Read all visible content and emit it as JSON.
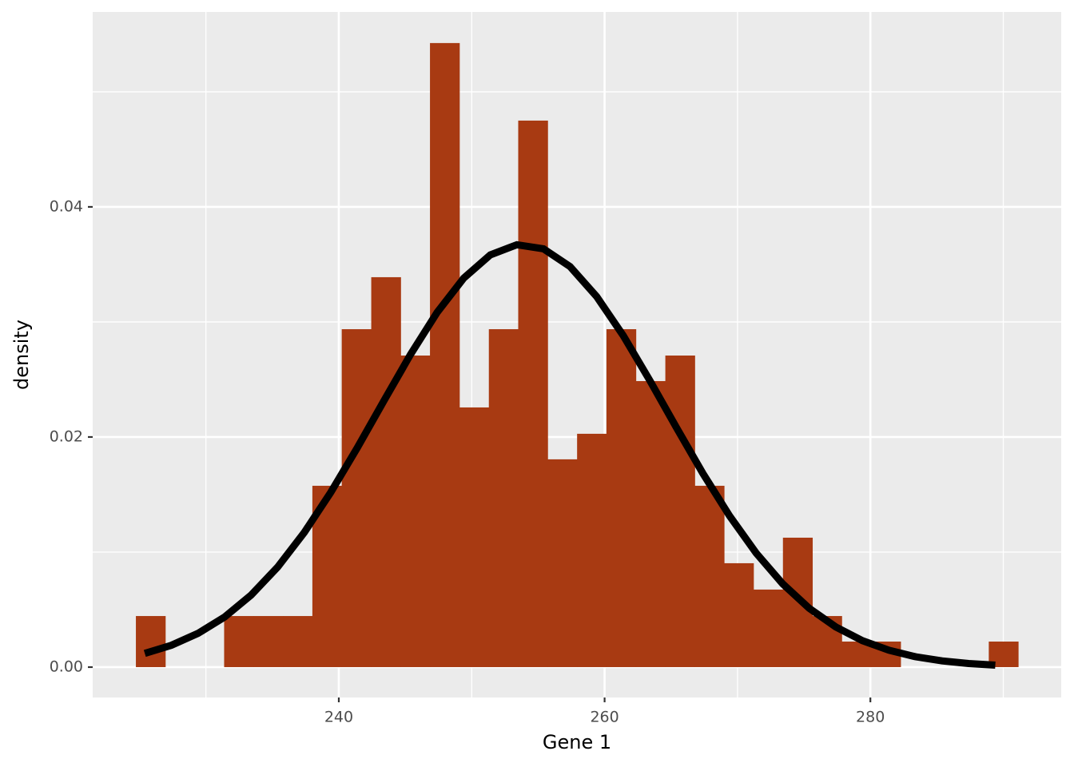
{
  "chart_data": {
    "type": "histogram",
    "xlabel": "Gene 1",
    "ylabel": "density",
    "bins": [
      224.73,
      226.94,
      229.16,
      231.37,
      233.58,
      235.8,
      238.01,
      240.22,
      242.44,
      244.65,
      246.86,
      249.07,
      251.29,
      253.5,
      255.71,
      257.93,
      260.14,
      262.35,
      264.57,
      266.78,
      268.99,
      271.2,
      273.42,
      275.63,
      277.84,
      280.06,
      282.27,
      284.48,
      286.7,
      288.91,
      291.12
    ],
    "values": [
      0.00444,
      0,
      0,
      0.00444,
      0.00444,
      0.00444,
      0.01576,
      0.02937,
      0.03389,
      0.02708,
      0.05424,
      0.02257,
      0.02937,
      0.0475,
      0.01806,
      0.02028,
      0.02937,
      0.02486,
      0.02708,
      0.01576,
      0.00903,
      0.00674,
      0.01125,
      0.00444,
      0.00222,
      0.00222,
      0,
      0,
      0,
      0.00222
    ],
    "color": "#a83a12",
    "line": {
      "color": "#000000",
      "x": [
        225.4,
        227.4,
        229.4,
        231.4,
        233.4,
        235.4,
        237.4,
        239.4,
        241.4,
        243.4,
        245.4,
        247.4,
        249.4,
        251.4,
        253.4,
        255.4,
        257.4,
        259.4,
        261.4,
        263.4,
        265.4,
        267.4,
        269.4,
        271.4,
        273.4,
        275.4,
        277.4,
        279.4,
        281.4,
        283.4,
        285.4,
        287.4,
        289.4
      ],
      "values": [
        0.00119,
        0.0019,
        0.00293,
        0.00435,
        0.00626,
        0.0087,
        0.0117,
        0.0152,
        0.01908,
        0.02316,
        0.02718,
        0.03083,
        0.03381,
        0.03583,
        0.03671,
        0.03636,
        0.03481,
        0.03221,
        0.02882,
        0.02492,
        0.02083,
        0.01683,
        0.01315,
        0.00992,
        0.00724,
        0.00511,
        0.00349,
        0.0023,
        0.00147,
        0.0009,
        0.00054,
        0.00031,
        0.00017
      ]
    },
    "xlim": [
      221.48,
      294.36
    ],
    "ylim": [
      -0.00264,
      0.05694
    ],
    "xticks": [
      240,
      260,
      280
    ],
    "yticks": [
      {
        "value": 0,
        "label": "0.00"
      },
      0.02,
      0.04
    ],
    "xminor": [
      230,
      250,
      270,
      290
    ],
    "yminor": [
      0.01,
      0.03,
      0.05
    ],
    "grid": true
  }
}
